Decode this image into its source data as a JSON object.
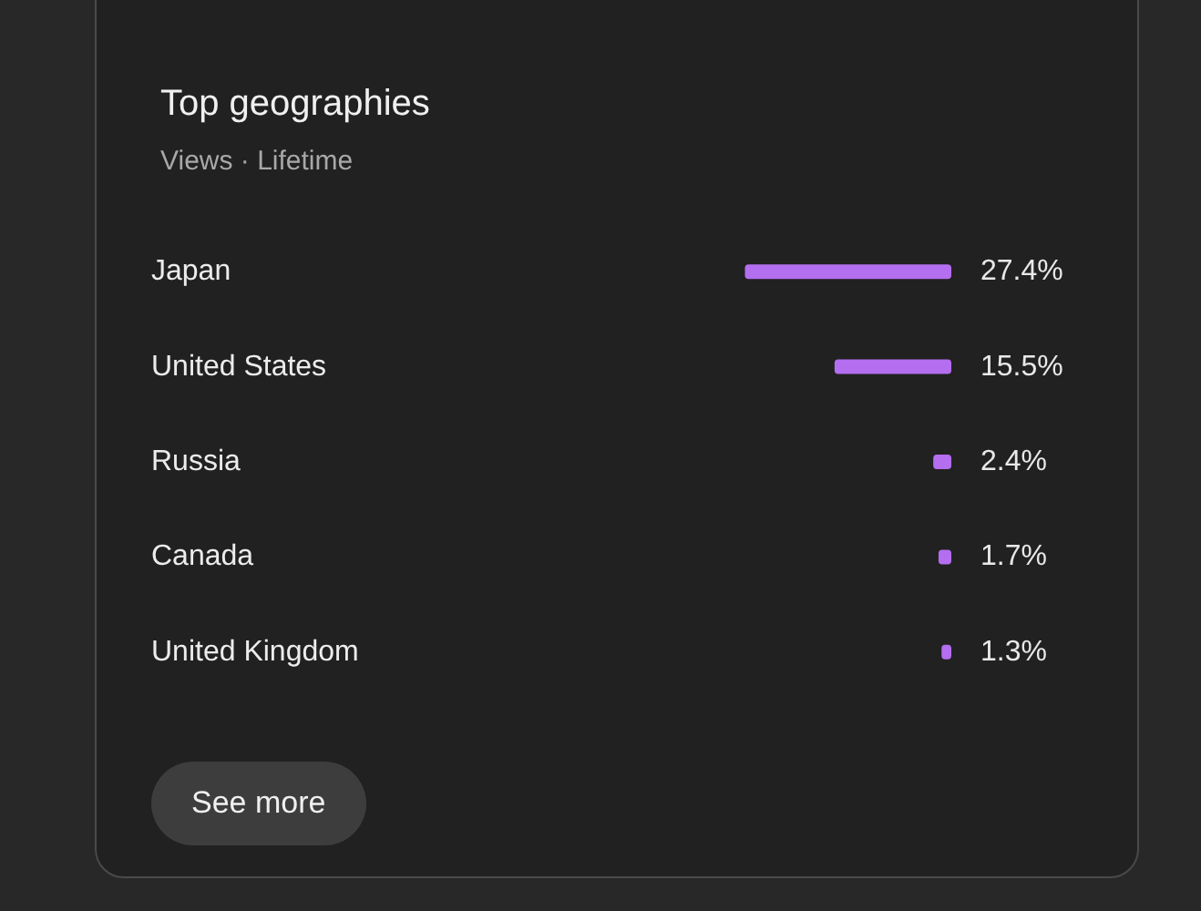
{
  "chart_data": {
    "type": "bar",
    "orientation": "horizontal",
    "title": "Top geographies",
    "subtitle": "Views · Lifetime",
    "categories": [
      "Japan",
      "United States",
      "Russia",
      "Canada",
      "United Kingdom"
    ],
    "values": [
      27.4,
      15.5,
      2.4,
      1.7,
      1.3
    ],
    "value_labels": [
      "27.4%",
      "15.5%",
      "2.4%",
      "1.7%",
      "1.3%"
    ],
    "color": "#b46ef0",
    "annotations": [
      "See more"
    ]
  }
}
